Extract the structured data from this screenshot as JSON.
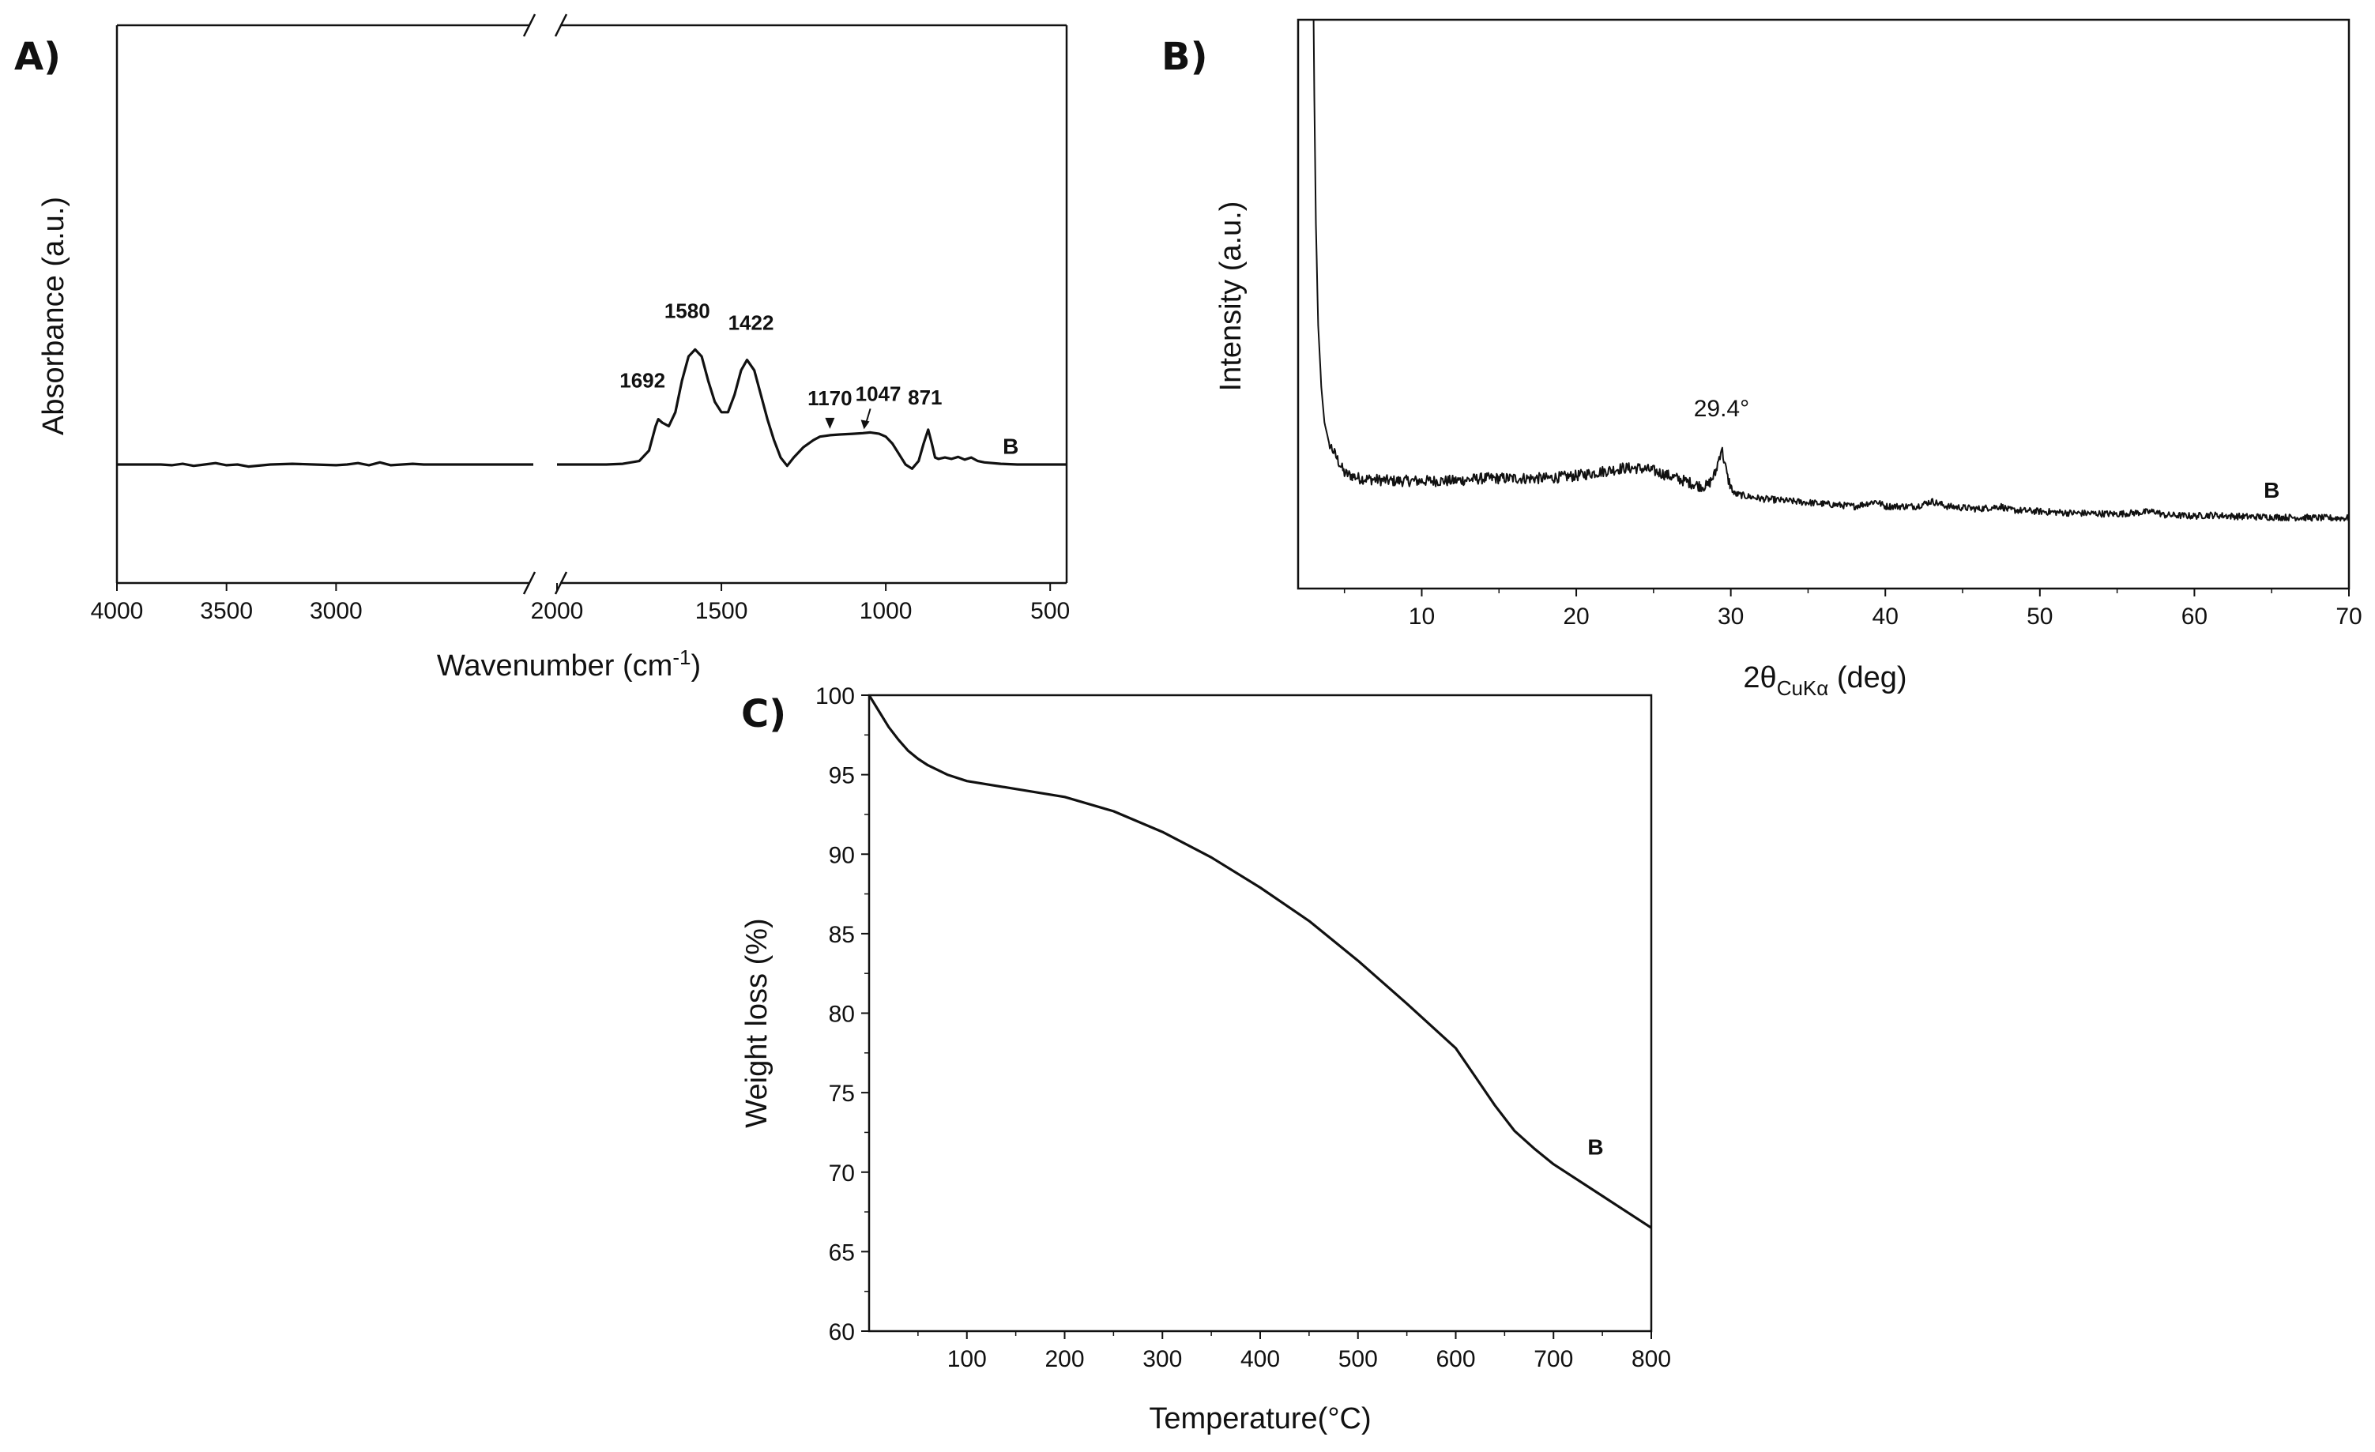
{
  "chart_data": [
    {
      "panel": "A)",
      "type": "line",
      "title": "",
      "xlabel": "Wavenumber (cm",
      "xlabel_sup": "-1",
      "xlabel_end": ")",
      "ylabel": "Absorbance (a.u.)",
      "xlim": [
        4000,
        450
      ],
      "axis_break": [
        2100,
        2000
      ],
      "xticks": [
        4000,
        3500,
        3000,
        2000,
        1500,
        1000,
        500
      ],
      "series": [
        {
          "name": "B",
          "x": [
            4000,
            3900,
            3800,
            3750,
            3700,
            3650,
            3600,
            3550,
            3500,
            3450,
            3400,
            3300,
            3200,
            3100,
            3000,
            2950,
            2900,
            2850,
            2800,
            2750,
            2700,
            2650,
            2600,
            2550,
            2500,
            2450,
            2400,
            2350,
            2300,
            2250,
            2200,
            2150,
            2100,
            2000,
            1950,
            1900,
            1850,
            1800,
            1750,
            1720,
            1700,
            1692,
            1680,
            1660,
            1640,
            1620,
            1600,
            1580,
            1560,
            1540,
            1520,
            1500,
            1480,
            1460,
            1440,
            1422,
            1400,
            1380,
            1360,
            1340,
            1320,
            1300,
            1280,
            1250,
            1220,
            1200,
            1170,
            1140,
            1100,
            1070,
            1047,
            1020,
            1000,
            980,
            960,
            940,
            920,
            900,
            885,
            871,
            860,
            850,
            840,
            820,
            800,
            780,
            760,
            740,
            720,
            700,
            650,
            600,
            550,
            500,
            450
          ],
          "y": [
            1.0,
            1.0,
            1.0,
            0.9,
            1.1,
            0.8,
            1.0,
            1.2,
            0.9,
            1.0,
            0.7,
            1.0,
            1.1,
            1.0,
            0.9,
            1.0,
            1.2,
            0.9,
            1.3,
            0.9,
            1.0,
            1.1,
            1.0,
            1.0,
            1.0,
            1.0,
            1.0,
            1.0,
            1.0,
            1.0,
            1.0,
            1.0,
            1.0,
            1.0,
            1.0,
            1.0,
            1.0,
            1.1,
            1.5,
            3.0,
            6.5,
            7.5,
            7.0,
            6.5,
            8.5,
            13.0,
            16.5,
            17.5,
            16.5,
            13.0,
            10.0,
            8.5,
            8.5,
            11.0,
            14.5,
            16.0,
            14.5,
            11.0,
            7.5,
            4.5,
            2.0,
            0.8,
            2.0,
            3.5,
            4.5,
            5.0,
            5.2,
            5.3,
            5.4,
            5.5,
            5.6,
            5.4,
            5.0,
            4.0,
            2.5,
            1.0,
            0.4,
            1.5,
            4.0,
            6.0,
            4.0,
            2.0,
            1.8,
            2.0,
            1.8,
            2.1,
            1.7,
            2.0,
            1.5,
            1.3,
            1.1,
            1.0,
            1.0,
            1.0,
            1.0
          ]
        }
      ],
      "ylim": [
        -16,
        64
      ],
      "peak_labels": [
        {
          "text": "1692",
          "x": 1692,
          "y": 7.5
        },
        {
          "text": "1580",
          "x": 1580,
          "y": 17.5
        },
        {
          "text": "1422",
          "x": 1422,
          "y": 16.0
        },
        {
          "text": "1170",
          "x": 1170,
          "y": 5.2
        },
        {
          "text": "1047",
          "x": 1047,
          "y": 5.6
        },
        {
          "text": "871",
          "x": 871,
          "y": 6.0
        }
      ],
      "sample_label": "B"
    },
    {
      "panel": "B)",
      "type": "line",
      "title": "",
      "xlabel_prefix": "2θ",
      "xlabel_sub": "CuKα",
      "xlabel_suffix": " (deg)",
      "ylabel": "Intensity (a.u.)",
      "xlim": [
        2,
        70
      ],
      "xticks": [
        10,
        20,
        30,
        40,
        50,
        60,
        70
      ],
      "ylim": [
        0,
        100
      ],
      "series": [
        {
          "name": "B",
          "x": [
            3,
            3.05,
            3.15,
            3.3,
            3.5,
            3.7,
            4.0,
            4.5,
            5,
            6,
            8,
            10,
            12,
            14,
            16,
            18,
            20,
            21,
            22,
            23,
            24,
            25,
            26,
            27,
            28,
            28.5,
            29,
            29.4,
            29.8,
            30.2,
            31,
            32,
            34,
            36,
            38,
            39.4,
            40,
            42,
            43,
            44,
            46,
            47.5,
            48,
            50,
            52,
            55,
            57.5,
            58,
            60,
            61,
            63,
            65,
            67,
            69,
            70
          ],
          "y": [
            100,
            85,
            60,
            40,
            28,
            21,
            17,
            14,
            11,
            10,
            9.5,
            9.5,
            9.5,
            10,
            10,
            10,
            10.5,
            11,
            11.5,
            12,
            12,
            11.5,
            10.5,
            9.5,
            8.5,
            8.5,
            11,
            16,
            10,
            7,
            6.5,
            6,
            5.5,
            5,
            4.5,
            5.5,
            4.5,
            4.5,
            5.5,
            4.5,
            4,
            4.5,
            3.8,
            3.5,
            3.2,
            3,
            3.5,
            2.8,
            2.6,
            2.8,
            2.5,
            2.4,
            2.3,
            2.2,
            2.2
          ]
        }
      ],
      "annotations": [
        {
          "text": "29.4°",
          "x": 29.4,
          "y": 16
        }
      ],
      "sample_label": "B"
    },
    {
      "panel": "C)",
      "type": "line",
      "title": "",
      "xlabel": "Temperature(°C)",
      "ylabel": "Weight loss (%)",
      "xlim": [
        0,
        800
      ],
      "ylim": [
        60,
        100
      ],
      "xticks": [
        100,
        200,
        300,
        400,
        500,
        600,
        700,
        800
      ],
      "yticks": [
        60,
        65,
        70,
        75,
        80,
        85,
        90,
        95,
        100
      ],
      "series": [
        {
          "name": "B",
          "x": [
            0,
            10,
            20,
            30,
            40,
            50,
            60,
            80,
            100,
            150,
            200,
            250,
            300,
            350,
            400,
            450,
            500,
            550,
            600,
            620,
            640,
            660,
            680,
            700,
            750,
            800
          ],
          "y": [
            100,
            99.0,
            98.0,
            97.2,
            96.5,
            96.0,
            95.6,
            95.0,
            94.6,
            94.1,
            93.6,
            92.7,
            91.4,
            89.8,
            87.9,
            85.8,
            83.3,
            80.6,
            77.8,
            76.0,
            74.2,
            72.6,
            71.5,
            70.5,
            68.5,
            66.5
          ]
        }
      ],
      "sample_label": "B"
    }
  ]
}
